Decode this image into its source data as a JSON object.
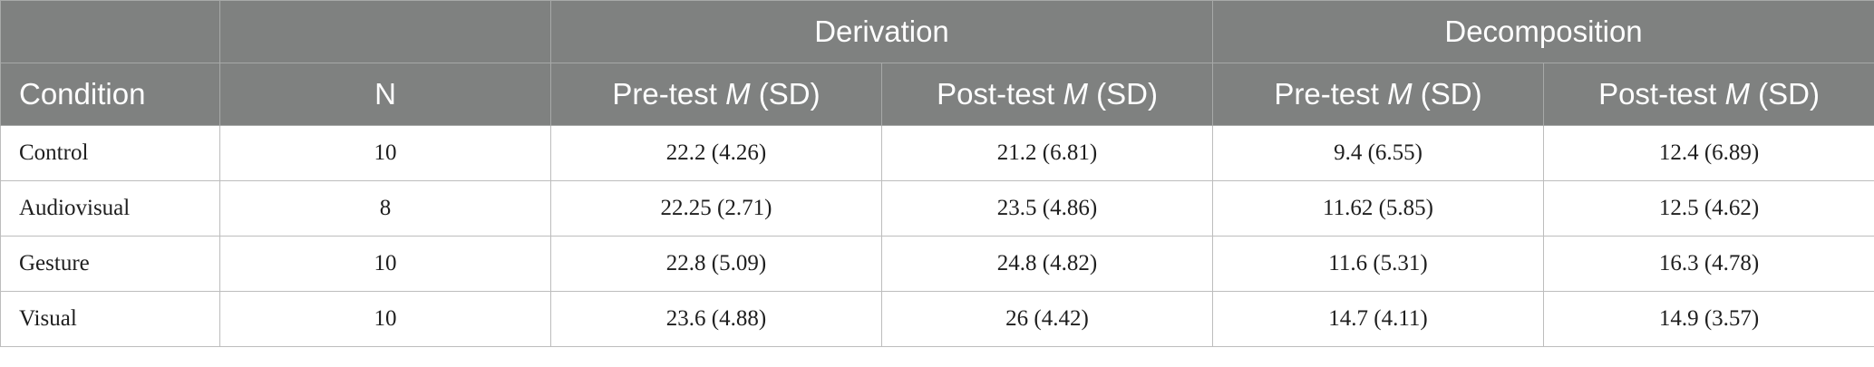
{
  "table": {
    "group_headers": [
      "Derivation",
      "Decomposition"
    ],
    "columns": {
      "condition": "Condition",
      "n": "N",
      "pre_prefix": "Pre-test ",
      "post_prefix": "Post-test ",
      "stat_m": "M",
      "stat_sd": " (SD)"
    },
    "rows": [
      {
        "condition": "Control",
        "n": "10",
        "derivation_pre": "22.2 (4.26)",
        "derivation_post": "21.2 (6.81)",
        "decomposition_pre": "9.4 (6.55)",
        "decomposition_post": "12.4 (6.89)"
      },
      {
        "condition": "Audiovisual",
        "n": "8",
        "derivation_pre": "22.25 (2.71)",
        "derivation_post": "23.5 (4.86)",
        "decomposition_pre": "11.62 (5.85)",
        "decomposition_post": "12.5 (4.62)"
      },
      {
        "condition": "Gesture",
        "n": "10",
        "derivation_pre": "22.8 (5.09)",
        "derivation_post": "24.8 (4.82)",
        "decomposition_pre": "11.6 (5.31)",
        "decomposition_post": "16.3 (4.78)"
      },
      {
        "condition": "Visual",
        "n": "10",
        "derivation_pre": "23.6 (4.88)",
        "derivation_post": "26 (4.42)",
        "decomposition_pre": "14.7 (4.11)",
        "decomposition_post": "14.9 (3.57)"
      }
    ]
  },
  "colors": {
    "header_background": "#7f8180",
    "header_text": "#ffffff",
    "body_text": "#1e1e1e",
    "grid_lines": "#bdbdbd"
  }
}
